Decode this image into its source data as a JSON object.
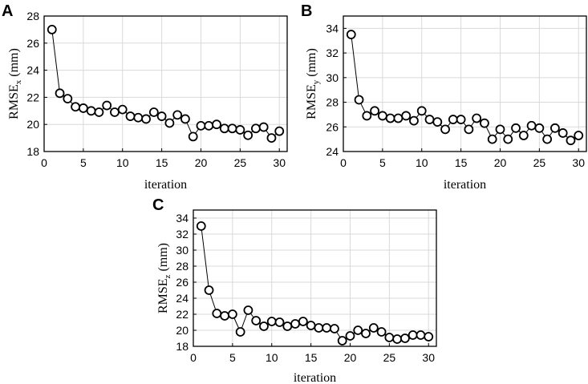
{
  "chart_data": [
    {
      "type": "scatter",
      "panel_label": "A",
      "title": "",
      "xlabel": "iteration",
      "ylabel_main": "RMSE",
      "ylabel_sub": "x",
      "ylabel_unit": "(mm)",
      "xlim": [
        0,
        31
      ],
      "ylim": [
        18,
        28
      ],
      "xticks": [
        0,
        5,
        10,
        15,
        20,
        25,
        30
      ],
      "yticks": [
        18,
        20,
        22,
        24,
        26,
        28
      ],
      "grid": true,
      "series": [
        {
          "name": "RMSE_x",
          "x": [
            1,
            2,
            3,
            4,
            5,
            6,
            7,
            8,
            9,
            10,
            11,
            12,
            13,
            14,
            15,
            16,
            17,
            18,
            19,
            20,
            21,
            22,
            23,
            24,
            25,
            26,
            27,
            28,
            29,
            30
          ],
          "values": [
            27.0,
            22.3,
            21.9,
            21.3,
            21.2,
            21.0,
            20.9,
            21.4,
            20.9,
            21.1,
            20.6,
            20.5,
            20.4,
            20.9,
            20.6,
            20.1,
            20.7,
            20.4,
            19.1,
            19.9,
            19.9,
            20.0,
            19.7,
            19.7,
            19.6,
            19.2,
            19.7,
            19.8,
            19.0,
            19.5
          ]
        }
      ]
    },
    {
      "type": "scatter",
      "panel_label": "B",
      "title": "",
      "xlabel": "iteration",
      "ylabel_main": "RMSE",
      "ylabel_sub": "y",
      "ylabel_unit": "(mm)",
      "xlim": [
        0,
        31
      ],
      "ylim": [
        24,
        35
      ],
      "xticks": [
        0,
        5,
        10,
        15,
        20,
        25,
        30
      ],
      "yticks": [
        24,
        26,
        28,
        30,
        32,
        34
      ],
      "grid": true,
      "series": [
        {
          "name": "RMSE_y",
          "x": [
            1,
            2,
            3,
            4,
            5,
            6,
            7,
            8,
            9,
            10,
            11,
            12,
            13,
            14,
            15,
            16,
            17,
            18,
            19,
            20,
            21,
            22,
            23,
            24,
            25,
            26,
            27,
            28,
            29,
            30
          ],
          "values": [
            33.5,
            28.2,
            26.9,
            27.3,
            26.9,
            26.7,
            26.7,
            26.9,
            26.5,
            27.3,
            26.6,
            26.4,
            25.8,
            26.6,
            26.6,
            25.8,
            26.7,
            26.3,
            25.0,
            25.8,
            25.0,
            25.9,
            25.3,
            26.1,
            25.9,
            25.0,
            25.9,
            25.5,
            24.9,
            25.3
          ]
        }
      ]
    },
    {
      "type": "scatter",
      "panel_label": "C",
      "title": "",
      "xlabel": "iteration",
      "ylabel_main": "RMSE",
      "ylabel_sub": "z",
      "ylabel_unit": "(mm)",
      "xlim": [
        0,
        31
      ],
      "ylim": [
        18,
        35
      ],
      "xticks": [
        0,
        5,
        10,
        15,
        20,
        25,
        30
      ],
      "yticks": [
        18,
        20,
        22,
        24,
        26,
        28,
        30,
        32,
        34
      ],
      "grid": true,
      "series": [
        {
          "name": "RMSE_z",
          "x": [
            1,
            2,
            3,
            4,
            5,
            6,
            7,
            8,
            9,
            10,
            11,
            12,
            13,
            14,
            15,
            16,
            17,
            18,
            19,
            20,
            21,
            22,
            23,
            24,
            25,
            26,
            27,
            28,
            29,
            30
          ],
          "values": [
            33.0,
            25.0,
            22.1,
            21.8,
            22.0,
            19.8,
            22.5,
            21.2,
            20.5,
            21.1,
            21.0,
            20.5,
            20.8,
            21.1,
            20.6,
            20.3,
            20.3,
            20.2,
            18.7,
            19.3,
            20.0,
            19.6,
            20.3,
            19.8,
            19.1,
            18.9,
            19.0,
            19.4,
            19.4,
            19.2
          ]
        }
      ]
    }
  ]
}
